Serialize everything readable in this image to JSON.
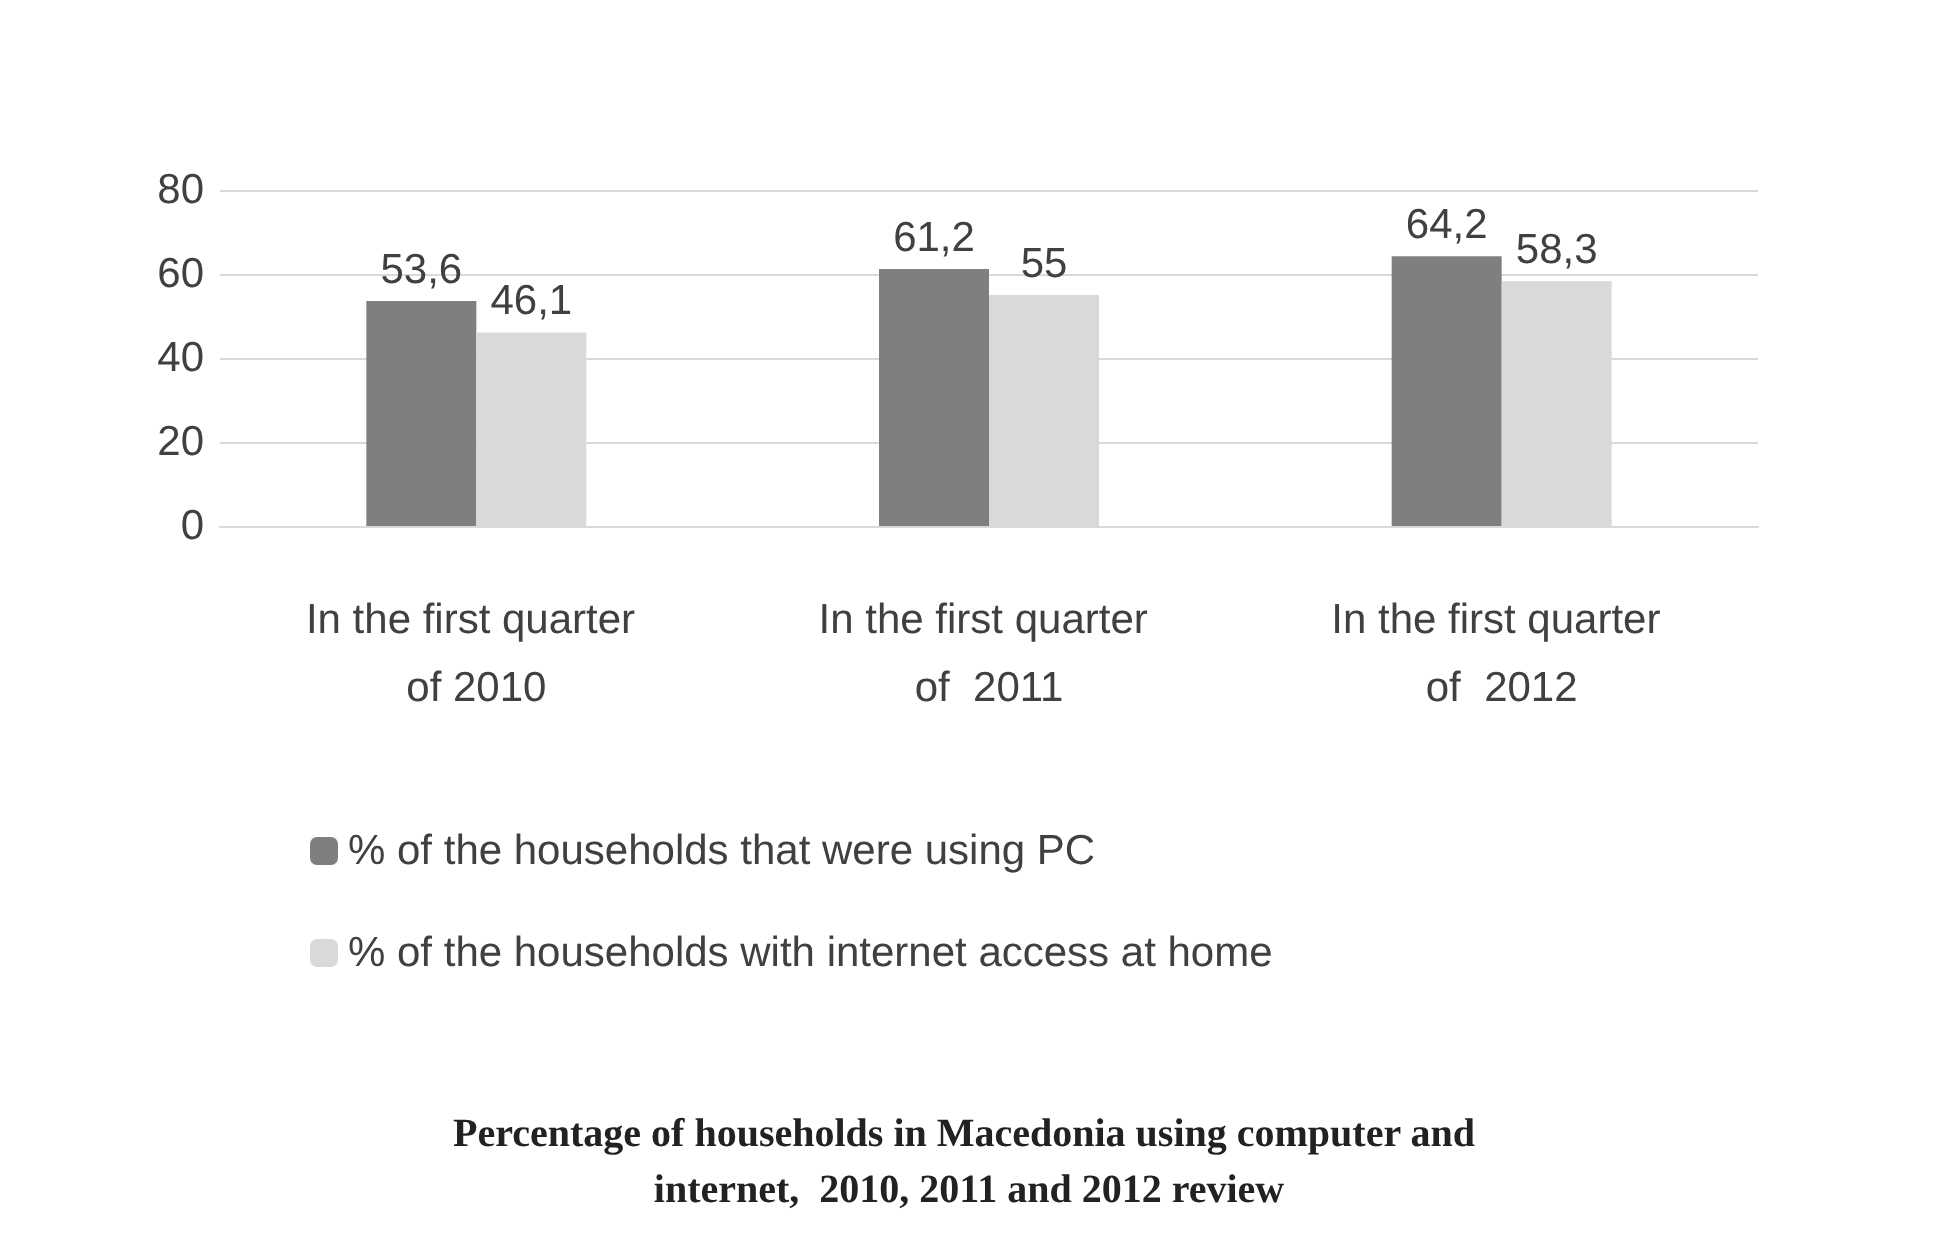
{
  "chart_data": {
    "type": "bar",
    "title": "Percentage of households in Macedonia using computer and internet,  2010, 2011 and 2012 review",
    "categories": [
      "In the first quarter of 2010",
      "In the first quarter of  2011",
      "In the first quarter of  2012"
    ],
    "series": [
      {
        "name": "% of the households that were using PC",
        "color": "#7f7f7f",
        "values": [
          53.6,
          61.2,
          64.2
        ],
        "value_labels": [
          "53,6",
          "61,2",
          "64,2"
        ]
      },
      {
        "name": "% of the households with internet access at home",
        "color": "#d9d9d9",
        "values": [
          46.1,
          55,
          58.3
        ],
        "value_labels": [
          "46,1",
          "55",
          "58,3"
        ]
      }
    ],
    "ylim": [
      0,
      80
    ],
    "yticks": [
      0,
      20,
      40,
      60,
      80
    ],
    "grid": "y",
    "legend": "bottom"
  }
}
